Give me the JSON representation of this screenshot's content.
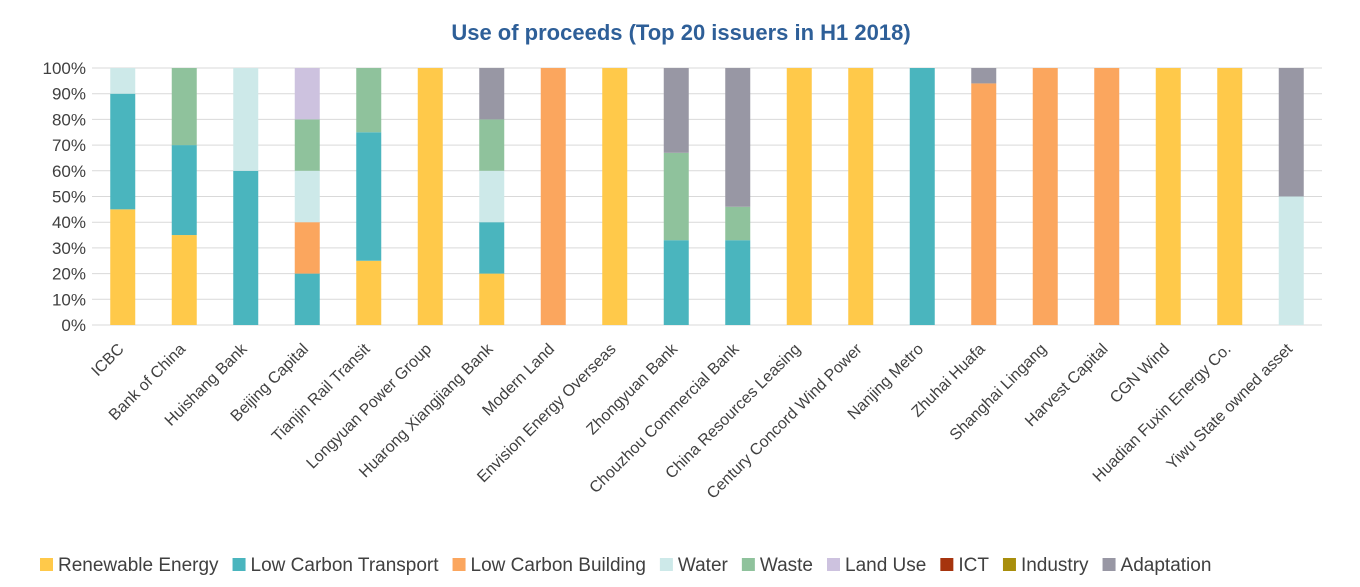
{
  "chart_data": {
    "type": "bar",
    "stacked": true,
    "title": "Use of proceeds (Top 20 issuers in H1 2018)",
    "ylim": [
      0,
      100
    ],
    "yticks": [
      "0%",
      "10%",
      "20%",
      "30%",
      "40%",
      "50%",
      "60%",
      "70%",
      "80%",
      "90%",
      "100%"
    ],
    "grid": true,
    "legend_position": "bottom",
    "categories": [
      "ICBC",
      "Bank of China",
      "Huishang Bank",
      "Beijing Capital",
      "Tianjin Rail Transit",
      "Longyuan Power Group",
      "Huarong Xiangjiang Bank",
      "Modern Land",
      "Envision Energy Overseas",
      "Zhongyuan Bank",
      "Chouzhou Commercial Bank",
      "China Resources Leasing",
      "Century Concord Wind Power",
      "Nanjing Metro",
      "Zhuhai Huafa",
      "Shanghai Lingang",
      "Harvest Capital",
      "CGN Wind",
      "Huadian Fuxin Energy Co.",
      "Yiwu State owned asset"
    ],
    "series": [
      {
        "name": "Renewable Energy",
        "color": "#ffc94a",
        "values": [
          45,
          35,
          0,
          0,
          25,
          100,
          20,
          0,
          100,
          0,
          0,
          100,
          100,
          0,
          0,
          0,
          0,
          100,
          100,
          0
        ]
      },
      {
        "name": "Low Carbon Transport",
        "color": "#4ab5be",
        "values": [
          45,
          35,
          60,
          20,
          50,
          0,
          20,
          0,
          0,
          33,
          33,
          0,
          0,
          100,
          0,
          0,
          0,
          0,
          0,
          0
        ]
      },
      {
        "name": "Low Carbon Building",
        "color": "#fba65e",
        "values": [
          0,
          0,
          0,
          20,
          0,
          0,
          0,
          100,
          0,
          0,
          0,
          0,
          0,
          0,
          94,
          100,
          100,
          0,
          0,
          0
        ]
      },
      {
        "name": "Water",
        "color": "#cde9e9",
        "values": [
          10,
          0,
          40,
          20,
          0,
          0,
          20,
          0,
          0,
          0,
          0,
          0,
          0,
          0,
          0,
          0,
          0,
          0,
          0,
          50
        ]
      },
      {
        "name": "Waste",
        "color": "#8fc29c",
        "values": [
          0,
          30,
          0,
          20,
          25,
          0,
          20,
          0,
          0,
          34,
          13,
          0,
          0,
          0,
          0,
          0,
          0,
          0,
          0,
          0
        ]
      },
      {
        "name": "Land Use",
        "color": "#cdc2df",
        "values": [
          0,
          0,
          0,
          20,
          0,
          0,
          0,
          0,
          0,
          0,
          0,
          0,
          0,
          0,
          0,
          0,
          0,
          0,
          0,
          0
        ]
      },
      {
        "name": "ICT",
        "color": "#a6340e",
        "values": [
          0,
          0,
          0,
          0,
          0,
          0,
          0,
          0,
          0,
          0,
          0,
          0,
          0,
          0,
          0,
          0,
          0,
          0,
          0,
          0
        ]
      },
      {
        "name": "Industry",
        "color": "#a88e0c",
        "values": [
          0,
          0,
          0,
          0,
          0,
          0,
          0,
          0,
          0,
          0,
          0,
          0,
          0,
          0,
          0,
          0,
          0,
          0,
          0,
          0
        ]
      },
      {
        "name": "Adaptation",
        "color": "#9897a4",
        "values": [
          0,
          0,
          0,
          0,
          0,
          0,
          20,
          0,
          0,
          33,
          54,
          0,
          0,
          0,
          6,
          0,
          0,
          0,
          0,
          50
        ]
      }
    ]
  }
}
